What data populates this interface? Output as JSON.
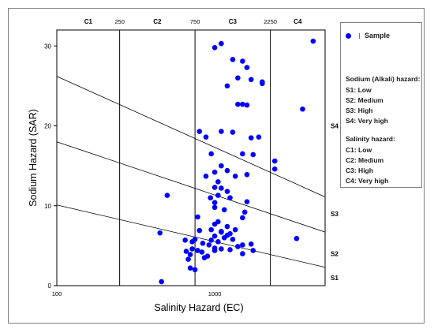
{
  "chart_data": {
    "type": "scatter",
    "xlabel": "Salinity Hazard (EC)",
    "ylabel": "Sodium Hazard (SAR)",
    "x_scale": "log",
    "xlim": [
      100,
      5000
    ],
    "ylim": [
      0,
      32
    ],
    "x_tick_labels": [
      "100",
      "1000"
    ],
    "y_ticks": [
      0,
      10,
      20,
      30
    ],
    "grid": false,
    "legend_placement": "right",
    "salinity_boundaries": [
      {
        "x": 250,
        "label": "250"
      },
      {
        "x": 750,
        "label": "750"
      },
      {
        "x": 2250,
        "label": "2250"
      }
    ],
    "salinity_classes": [
      "C1",
      "C2",
      "C3",
      "C4"
    ],
    "sodium_lines": [
      {
        "x": [
          100,
          5000
        ],
        "y": [
          26.2,
          11.1
        ]
      },
      {
        "x": [
          100,
          5000
        ],
        "y": [
          18.0,
          6.7
        ]
      },
      {
        "x": [
          100,
          5000
        ],
        "y": [
          10.1,
          2.3
        ]
      }
    ],
    "sodium_classes": [
      {
        "label": "S1",
        "y": 1.0
      },
      {
        "label": "S2",
        "y": 4.0
      },
      {
        "label": "S3",
        "y": 9.0
      },
      {
        "label": "S4",
        "y": 20.0
      }
    ],
    "series": [
      {
        "name": "Sample",
        "color": "#0000ff",
        "points": [
          [
            1000,
            29.8
          ],
          [
            1100,
            30.3
          ],
          [
            1300,
            28.3
          ],
          [
            1500,
            28.1
          ],
          [
            1600,
            27.3
          ],
          [
            1400,
            26.0
          ],
          [
            1700,
            25.8
          ],
          [
            2000,
            25.5
          ],
          [
            2000,
            25.3
          ],
          [
            1200,
            25.0
          ],
          [
            1500,
            22.7
          ],
          [
            1400,
            22.7
          ],
          [
            1600,
            22.6
          ],
          [
            1300,
            19.2
          ],
          [
            1100,
            19.3
          ],
          [
            800,
            19.3
          ],
          [
            880,
            18.6
          ],
          [
            1900,
            18.6
          ],
          [
            1700,
            18.5
          ],
          [
            950,
            16.5
          ],
          [
            1500,
            16.5
          ],
          [
            1750,
            16.4
          ],
          [
            2400,
            15.6
          ],
          [
            2400,
            14.6
          ],
          [
            1100,
            15.0
          ],
          [
            1000,
            14.2
          ],
          [
            1200,
            14.4
          ],
          [
            1600,
            13.9
          ],
          [
            1350,
            13.7
          ],
          [
            880,
            13.7
          ],
          [
            1050,
            13.0
          ],
          [
            1000,
            12.3
          ],
          [
            1100,
            12.2
          ],
          [
            1200,
            11.8
          ],
          [
            1050,
            11.3
          ],
          [
            1250,
            11.0
          ],
          [
            940,
            11.0
          ],
          [
            1600,
            10.5
          ],
          [
            1000,
            10.4
          ],
          [
            1000,
            9.8
          ],
          [
            1150,
            9.5
          ],
          [
            1550,
            9.2
          ],
          [
            1500,
            8.5
          ],
          [
            1050,
            8.0
          ],
          [
            780,
            8.6
          ],
          [
            1000,
            7.7
          ],
          [
            1200,
            7.4
          ],
          [
            950,
            7.0
          ],
          [
            1350,
            7.0
          ],
          [
            800,
            6.9
          ],
          [
            1100,
            6.8
          ],
          [
            1100,
            6.7
          ],
          [
            1250,
            6.5
          ],
          [
            1200,
            6.3
          ],
          [
            1000,
            6.2
          ],
          [
            1150,
            6.0
          ],
          [
            1300,
            5.8
          ],
          [
            1050,
            5.5
          ],
          [
            950,
            5.7
          ],
          [
            1700,
            5.2
          ],
          [
            1500,
            5.1
          ],
          [
            1400,
            4.9
          ],
          [
            1100,
            4.6
          ],
          [
            1000,
            4.4
          ],
          [
            1250,
            4.5
          ],
          [
            780,
            4.4
          ],
          [
            720,
            4.6
          ],
          [
            700,
            3.9
          ],
          [
            660,
            4.3
          ],
          [
            1500,
            4.0
          ],
          [
            900,
            3.7
          ],
          [
            860,
            3.5
          ],
          [
            680,
            3.3
          ],
          [
            1750,
            4.4
          ],
          [
            830,
            4.2
          ],
          [
            720,
            5.5
          ],
          [
            650,
            5.7
          ],
          [
            750,
            5.8
          ],
          [
            840,
            5.3
          ],
          [
            920,
            5.1
          ],
          [
            1000,
            4.7
          ],
          [
            700,
            2.2
          ],
          [
            750,
            2.0
          ],
          [
            500,
            11.3
          ],
          [
            450,
            6.6
          ],
          [
            3300,
            5.9
          ],
          [
            3600,
            22.1
          ],
          [
            4200,
            30.6
          ],
          [
            460,
            0.5
          ]
        ]
      }
    ]
  },
  "legend": {
    "sample_label": "Sample",
    "sodium_title": "Sodium (Alkali) hazard:",
    "sodium_items": [
      "S1: Low",
      "S2: Medium",
      "S3: High",
      "S4: Very high"
    ],
    "salinity_title": "Salinity hazard:",
    "salinity_items": [
      "C1: Low",
      "C2: Medium",
      "C3: High",
      "C4: Very high"
    ]
  }
}
